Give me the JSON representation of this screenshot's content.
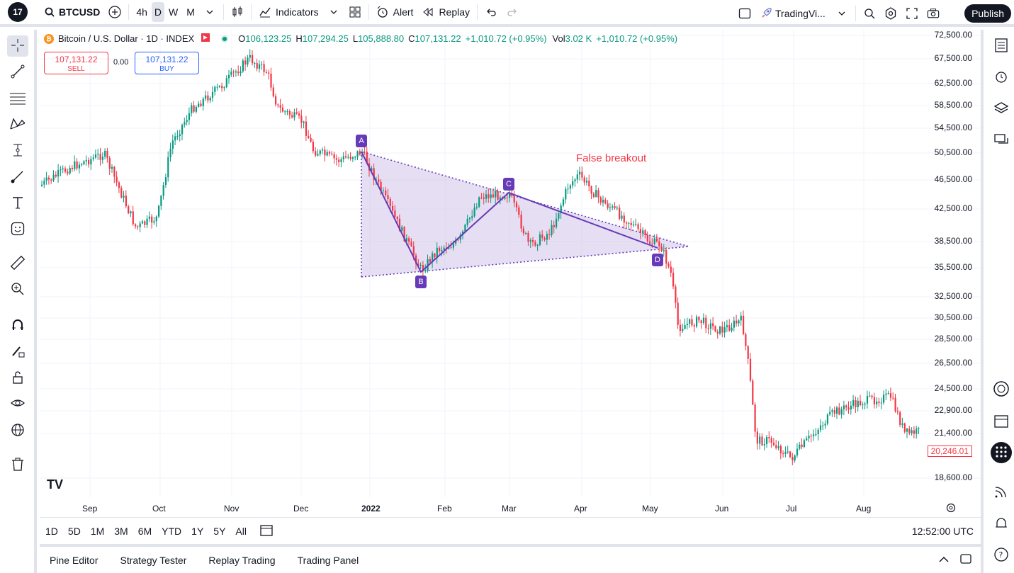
{
  "topbar": {
    "logo": "17",
    "symbol": "BTCUSD",
    "intervals": [
      "4h",
      "D",
      "W",
      "M"
    ],
    "active_interval": "D",
    "indicators_label": "Indicators",
    "alert_label": "Alert",
    "replay_label": "Replay",
    "layout_name": "TradingVi...",
    "publish_label": "Publish"
  },
  "legend": {
    "title": "Bitcoin / U.S. Dollar · 1D · INDEX",
    "o_label": "O",
    "o_value": "106,123.25",
    "h_label": "H",
    "h_value": "107,294.25",
    "l_label": "L",
    "l_value": "105,888.80",
    "c_label": "C",
    "c_value": "107,131.22",
    "change": "+1,010.72 (+0.95%)",
    "vol_label": "Vol",
    "vol_value": "3.02 K",
    "vol_change": "+1,010.72 (+0.95%)"
  },
  "trade": {
    "sell_price": "107,131.22",
    "sell_label": "SELL",
    "spread": "0.00",
    "buy_price": "107,131.22",
    "buy_label": "BUY"
  },
  "price_axis": [
    "72,500.00",
    "67,500.00",
    "62,500.00",
    "58,500.00",
    "54,500.00",
    "50,500.00",
    "46,500.00",
    "42,500.00",
    "38,500.00",
    "35,500.00",
    "32,500.00",
    "30,500.00",
    "28,500.00",
    "26,500.00",
    "24,500.00",
    "22,900.00",
    "21,400.00",
    "18,600.00"
  ],
  "last_price": "20,246.01",
  "time_axis": [
    "Sep",
    "Oct",
    "Nov",
    "Dec",
    "2022",
    "Feb",
    "Mar",
    "Apr",
    "May",
    "Jun",
    "Jul",
    "Aug"
  ],
  "annotation": "False breakout",
  "pattern_points": [
    "A",
    "B",
    "C",
    "D"
  ],
  "colors": {
    "up": "#089981",
    "down": "#f23645",
    "pattern": "#673ab7",
    "pattern_fill": "#d1c4e9"
  },
  "chart_data": {
    "type": "candlestick",
    "series": [
      {
        "name": "BTCUSD"
      }
    ],
    "pattern": {
      "A": 48500,
      "B": 35000,
      "C": 44500,
      "D": 37000
    }
  },
  "rangebar": {
    "ranges": [
      "1D",
      "5D",
      "1M",
      "3M",
      "6M",
      "YTD",
      "1Y",
      "5Y",
      "All"
    ],
    "clock": "12:52:00 UTC"
  },
  "bottom_tabs": [
    "Pine Editor",
    "Strategy Tester",
    "Replay Trading",
    "Trading Panel"
  ]
}
